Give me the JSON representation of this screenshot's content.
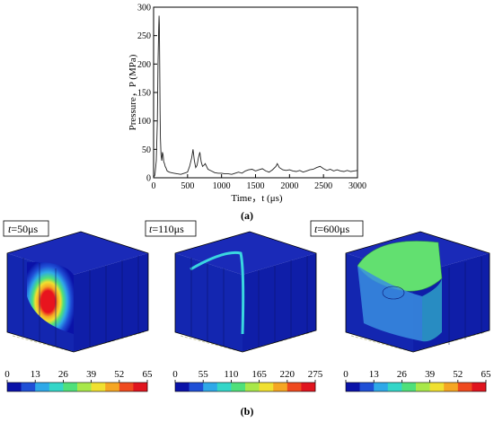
{
  "chart_data": {
    "type": "line",
    "xlabel": "Time，t (μs)",
    "ylabel": "Pressure，P (MPa)",
    "xlim": [
      0,
      3000
    ],
    "ylim": [
      0,
      300
    ],
    "xticks": [
      0,
      500,
      1000,
      1500,
      2000,
      2500,
      3000
    ],
    "yticks": [
      0,
      50,
      100,
      150,
      200,
      250,
      300
    ],
    "grid": false,
    "x": [
      0,
      20,
      40,
      55,
      65,
      75,
      80,
      85,
      90,
      95,
      100,
      110,
      120,
      130,
      140,
      150,
      160,
      170,
      180,
      200,
      230,
      260,
      300,
      350,
      400,
      450,
      500,
      530,
      560,
      580,
      600,
      620,
      640,
      660,
      680,
      700,
      720,
      740,
      760,
      800,
      850,
      900,
      950,
      1000,
      1050,
      1100,
      1150,
      1200,
      1250,
      1300,
      1350,
      1400,
      1450,
      1500,
      1550,
      1600,
      1650,
      1700,
      1750,
      1800,
      1820,
      1850,
      1900,
      1950,
      2000,
      2050,
      2100,
      2150,
      2200,
      2250,
      2300,
      2350,
      2400,
      2450,
      2500,
      2550,
      2600,
      2650,
      2700,
      2750,
      2800,
      2850,
      2900,
      2950,
      3000
    ],
    "y": [
      0,
      5,
      30,
      100,
      200,
      265,
      285,
      270,
      200,
      120,
      70,
      40,
      30,
      45,
      40,
      28,
      25,
      20,
      18,
      12,
      10,
      9,
      8,
      7,
      6,
      8,
      10,
      20,
      35,
      50,
      30,
      18,
      22,
      35,
      45,
      28,
      20,
      22,
      25,
      15,
      12,
      9,
      8,
      8,
      7,
      7,
      6,
      8,
      10,
      8,
      12,
      14,
      15,
      12,
      14,
      16,
      12,
      10,
      14,
      20,
      25,
      18,
      14,
      13,
      14,
      12,
      11,
      13,
      10,
      12,
      14,
      15,
      18,
      20,
      16,
      13,
      15,
      12,
      14,
      12,
      11,
      13,
      11,
      12,
      13
    ]
  },
  "panel_a_label": "(a)",
  "panel_b_label": "(b)",
  "panels": [
    {
      "time_label": "t=50μs",
      "t_prefix": "t",
      "t_value": "=50μs",
      "scale_ticks": [
        "0",
        "13",
        "26",
        "39",
        "52",
        "65"
      ]
    },
    {
      "time_label": "t=110μs",
      "t_prefix": "t",
      "t_value": "=110μs",
      "scale_ticks": [
        "0",
        "55",
        "110",
        "165",
        "220",
        "275"
      ]
    },
    {
      "time_label": "t=600μs",
      "t_prefix": "t",
      "t_value": "=600μs",
      "scale_ticks": [
        "0",
        "13",
        "26",
        "39",
        "52",
        "65"
      ]
    }
  ],
  "colorbar_colors": [
    "#0a12a8",
    "#1f4fd6",
    "#2ea8e8",
    "#33d6c8",
    "#4fe07a",
    "#a8e84a",
    "#f0e030",
    "#f5a623",
    "#ef4a1f",
    "#e0141e"
  ]
}
